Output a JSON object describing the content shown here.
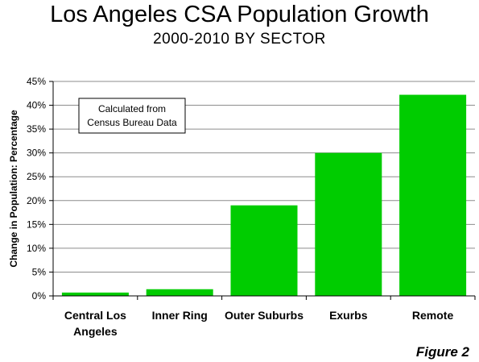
{
  "chart_data": {
    "type": "bar",
    "title": "Los Angeles CSA Population Growth",
    "subtitle": "2000-2010 BY SECTOR",
    "categories": [
      "Central Los Angeles",
      "Inner Ring",
      "Outer Suburbs",
      "Exurbs",
      "Remote"
    ],
    "category_lines": [
      [
        "Central Los",
        "Angeles"
      ],
      [
        "Inner Ring"
      ],
      [
        "Outer Suburbs"
      ],
      [
        "Exurbs"
      ],
      [
        "Remote"
      ]
    ],
    "values": [
      0.7,
      1.4,
      19.0,
      30.0,
      42.2
    ],
    "ylabel": "Change in Population: Percentage",
    "xlabel": "",
    "ylim": [
      0,
      45
    ],
    "yticks": [
      0,
      5,
      10,
      15,
      20,
      25,
      30,
      35,
      40,
      45
    ],
    "ytick_labels": [
      "0%",
      "5%",
      "10%",
      "15%",
      "20%",
      "25%",
      "30%",
      "35%",
      "40%",
      "45%"
    ],
    "grid": true,
    "annotation_lines": [
      "Calculated from",
      "Census Bureau Data"
    ],
    "figure_label": "Figure 2",
    "bar_color": "#00cc00",
    "grid_color": "#8c8c8c"
  }
}
